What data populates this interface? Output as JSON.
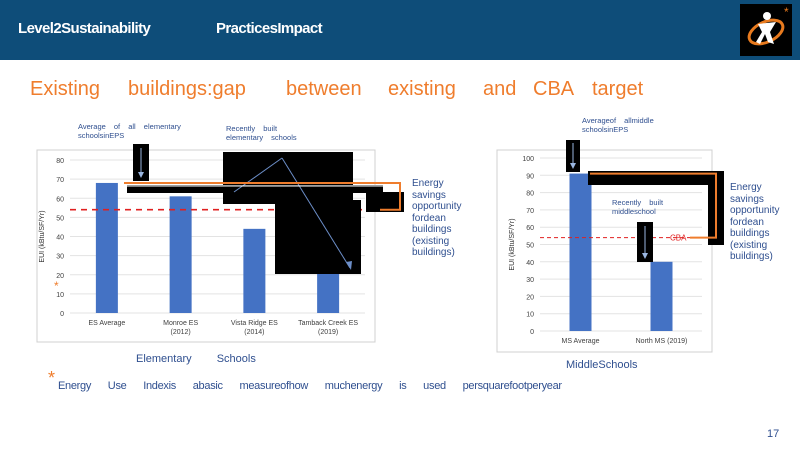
{
  "header": {
    "left": "Level2Sustainability",
    "middle": "PracticesImpact"
  },
  "title_words": [
    "Existing",
    "buildings:gap",
    "between",
    "existing",
    "and",
    "CBA",
    "target"
  ],
  "annotations": {
    "es_avg": "Average of all elementary schoolsinEPS",
    "recent_es": "Recently built elementary schools",
    "ms_avg": "Averageof allmiddle schoolsinEPS",
    "recent_ms": "Recently built middleschool",
    "savings_left": "Energy savings opportunity fordean buildings (existing buildings)",
    "savings_right": "Energy savings opportunity fordean buildings (existing buildings)",
    "cba_label": "CBA"
  },
  "captions": {
    "left": "Elementary Schools",
    "right": "MiddleSchools"
  },
  "footnote": {
    "star": "*",
    "text": "Energy Use Indexis abasic measureofhow muchenergy is used persquarefootperyear"
  },
  "page_number": "17",
  "colors": {
    "bar": "#4472c4",
    "cba_line": "#e02020",
    "header": "#0e4d79",
    "accent": "#ef7d2d"
  },
  "chart_data": [
    {
      "type": "bar",
      "categories": [
        "ES Average",
        "Monroe ES (2012)",
        "Vista Ridge ES (2014)",
        "Tamback Creek ES (2019)"
      ],
      "values": [
        68,
        61,
        44,
        21
      ],
      "ylabel": "EUI (kBtu/SF/Yr)",
      "ylim": [
        0,
        80
      ],
      "yticks": [
        0,
        10,
        20,
        30,
        40,
        50,
        60,
        70,
        80
      ],
      "cba_target": 54,
      "grid": true
    },
    {
      "type": "bar",
      "categories": [
        "MS Average",
        "North MS (2019)"
      ],
      "values": [
        91,
        40
      ],
      "ylabel": "EUI (kBtu/SF/Yr)",
      "ylim": [
        0,
        100
      ],
      "yticks": [
        0,
        10,
        20,
        30,
        40,
        50,
        60,
        70,
        80,
        90,
        100
      ],
      "cba_target": 54,
      "grid": true
    }
  ]
}
